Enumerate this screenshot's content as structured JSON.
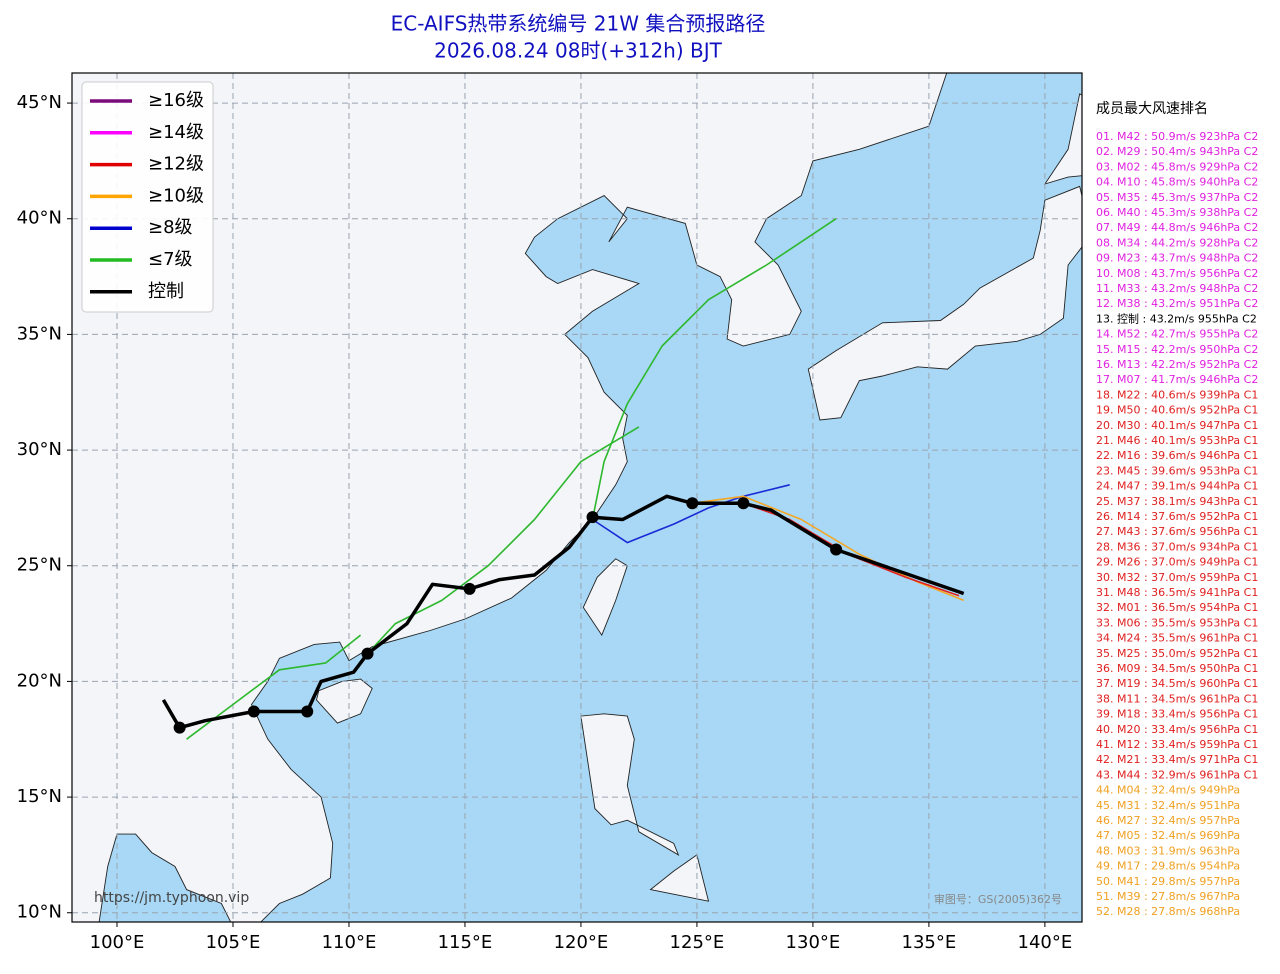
{
  "title": [
    "EC-AIFS热带系统编号 21W 集合预报路径",
    "2026.08.24 08时(+312h) BJT"
  ],
  "map": {
    "xlim": [
      98.06,
      141.6
    ],
    "ylim": [
      9.6,
      46.3
    ],
    "xticks": [
      {
        "value": 100,
        "label": "100°E"
      },
      {
        "value": 105,
        "label": "105°E"
      },
      {
        "value": 110,
        "label": "110°E"
      },
      {
        "value": 115,
        "label": "115°E"
      },
      {
        "value": 120,
        "label": "120°E"
      },
      {
        "value": 125,
        "label": "125°E"
      },
      {
        "value": 130,
        "label": "130°E"
      },
      {
        "value": 135,
        "label": "135°E"
      },
      {
        "value": 140,
        "label": "140°E"
      }
    ],
    "yticks": [
      {
        "value": 10,
        "label": "10°N"
      },
      {
        "value": 15,
        "label": "15°N"
      },
      {
        "value": 20,
        "label": "20°N"
      },
      {
        "value": 25,
        "label": "25°N"
      },
      {
        "value": 30,
        "label": "30°N"
      },
      {
        "value": 35,
        "label": "35°N"
      },
      {
        "value": 40,
        "label": "40°N"
      },
      {
        "value": 45,
        "label": "45°N"
      }
    ],
    "grid": true,
    "member_tracks": [
      {
        "color": "#2db82d",
        "lon": [
          120.5,
          121,
          122,
          123.5,
          125.5,
          128,
          131
        ],
        "lat": [
          27,
          29.5,
          32,
          34.5,
          36.5,
          38,
          40
        ]
      },
      {
        "color": "#2db82d",
        "lon": [
          110.8,
          112,
          114,
          116,
          118,
          120,
          122.5
        ],
        "lat": [
          21.2,
          22.5,
          23.5,
          25,
          27,
          29.5,
          31
        ]
      },
      {
        "color": "#2db82d",
        "lon": [
          103,
          105,
          107,
          109,
          110.5
        ],
        "lat": [
          17.5,
          19,
          20.5,
          20.8,
          22
        ]
      },
      {
        "color": "#1a2ad6",
        "lon": [
          120.5,
          122,
          124,
          125.5,
          127,
          129
        ],
        "lat": [
          27,
          26,
          26.8,
          27.5,
          28,
          28.5
        ]
      },
      {
        "color": "#f5a623",
        "lon": [
          124.8,
          127,
          129.5,
          132,
          134.5,
          136.5
        ],
        "lat": [
          27.7,
          28,
          27,
          25.5,
          24.3,
          23.5
        ]
      },
      {
        "color": "#e02020",
        "lon": [
          127,
          129,
          131.5,
          134,
          136.3
        ],
        "lat": [
          27.7,
          27,
          25.5,
          24.5,
          23.7
        ]
      }
    ],
    "control_track": {
      "color": "#000000",
      "lon": [
        102,
        102.7,
        103.8,
        105.9,
        108.2,
        108.8,
        110.2,
        110.8,
        112.5,
        113.6,
        115.2,
        116.5,
        118,
        119.5,
        120.5,
        121.8,
        123.7,
        124.8,
        127,
        128.2,
        131,
        136.5
      ],
      "lat": [
        19.2,
        18,
        18.3,
        18.7,
        18.7,
        20,
        20.4,
        21.2,
        22.5,
        24.2,
        24,
        24.4,
        24.6,
        25.8,
        27.1,
        27,
        28,
        27.7,
        27.7,
        27.4,
        25.7,
        23.8
      ]
    },
    "control_points": {
      "lon": [
        102.7,
        105.9,
        108.2,
        110.8,
        115.2,
        120.5,
        124.8,
        127,
        131
      ],
      "lat": [
        18,
        18.7,
        18.7,
        21.2,
        24,
        27.1,
        27.7,
        27.7,
        25.7
      ]
    }
  },
  "legend": [
    {
      "label": "≥16级",
      "color": "#7b0a7b"
    },
    {
      "label": "≥14级",
      "color": "#ff00ff"
    },
    {
      "label": "≥12级",
      "color": "#e00000"
    },
    {
      "label": "≥10级",
      "color": "#ffa500"
    },
    {
      "label": "≥8级",
      "color": "#0000cc"
    },
    {
      "label": "≤7级",
      "color": "#22bb22"
    },
    {
      "label": "控制",
      "color": "#000000"
    }
  ],
  "ranking": {
    "title": "成员最大风速排名",
    "items": [
      {
        "text": "01. M42 : 50.9m/s 923hPa C2",
        "color": "#e020e0"
      },
      {
        "text": "02. M29 : 50.4m/s 943hPa C2",
        "color": "#e020e0"
      },
      {
        "text": "03. M02 : 45.8m/s 929hPa C2",
        "color": "#e020e0"
      },
      {
        "text": "04. M10 : 45.8m/s 940hPa C2",
        "color": "#e020e0"
      },
      {
        "text": "05. M35 : 45.3m/s 937hPa C2",
        "color": "#e020e0"
      },
      {
        "text": "06. M40 : 45.3m/s 938hPa C2",
        "color": "#e020e0"
      },
      {
        "text": "07. M49 : 44.8m/s 946hPa C2",
        "color": "#e020e0"
      },
      {
        "text": "08. M34 : 44.2m/s 928hPa C2",
        "color": "#e020e0"
      },
      {
        "text": "09. M23 : 43.7m/s 948hPa C2",
        "color": "#e020e0"
      },
      {
        "text": "10. M08 : 43.7m/s 956hPa C2",
        "color": "#e020e0"
      },
      {
        "text": "11. M33 : 43.2m/s 948hPa C2",
        "color": "#e020e0"
      },
      {
        "text": "12. M38 : 43.2m/s 951hPa C2",
        "color": "#e020e0"
      },
      {
        "text": "13. 控制 : 43.2m/s 955hPa C2",
        "color": "#000000"
      },
      {
        "text": "14. M52 : 42.7m/s 955hPa C2",
        "color": "#e020e0"
      },
      {
        "text": "15. M15 : 42.2m/s 950hPa C2",
        "color": "#e020e0"
      },
      {
        "text": "16. M13 : 42.2m/s 952hPa C2",
        "color": "#e020e0"
      },
      {
        "text": "17. M07 : 41.7m/s 946hPa C2",
        "color": "#e020e0"
      },
      {
        "text": "18. M22 : 40.6m/s 939hPa C1",
        "color": "#e02020"
      },
      {
        "text": "19. M50 : 40.6m/s 952hPa C1",
        "color": "#e02020"
      },
      {
        "text": "20. M30 : 40.1m/s 947hPa C1",
        "color": "#e02020"
      },
      {
        "text": "21. M46 : 40.1m/s 953hPa C1",
        "color": "#e02020"
      },
      {
        "text": "22. M16 : 39.6m/s 946hPa C1",
        "color": "#e02020"
      },
      {
        "text": "23. M45 : 39.6m/s 953hPa C1",
        "color": "#e02020"
      },
      {
        "text": "24. M47 : 39.1m/s 944hPa C1",
        "color": "#e02020"
      },
      {
        "text": "25. M37 : 38.1m/s 943hPa C1",
        "color": "#e02020"
      },
      {
        "text": "26. M14 : 37.6m/s 952hPa C1",
        "color": "#e02020"
      },
      {
        "text": "27. M43 : 37.6m/s 956hPa C1",
        "color": "#e02020"
      },
      {
        "text": "28. M36 : 37.0m/s 934hPa C1",
        "color": "#e02020"
      },
      {
        "text": "29. M26 : 37.0m/s 949hPa C1",
        "color": "#e02020"
      },
      {
        "text": "30. M32 : 37.0m/s 959hPa C1",
        "color": "#e02020"
      },
      {
        "text": "31. M48 : 36.5m/s 941hPa C1",
        "color": "#e02020"
      },
      {
        "text": "32. M01 : 36.5m/s 954hPa C1",
        "color": "#e02020"
      },
      {
        "text": "33. M06 : 35.5m/s 953hPa C1",
        "color": "#e02020"
      },
      {
        "text": "34. M24 : 35.5m/s 961hPa C1",
        "color": "#e02020"
      },
      {
        "text": "35. M25 : 35.0m/s 952hPa C1",
        "color": "#e02020"
      },
      {
        "text": "36. M09 : 34.5m/s 950hPa C1",
        "color": "#e02020"
      },
      {
        "text": "37. M19 : 34.5m/s 960hPa C1",
        "color": "#e02020"
      },
      {
        "text": "38. M11 : 34.5m/s 961hPa C1",
        "color": "#e02020"
      },
      {
        "text": "39. M18 : 33.4m/s 956hPa C1",
        "color": "#e02020"
      },
      {
        "text": "40. M20 : 33.4m/s 956hPa C1",
        "color": "#e02020"
      },
      {
        "text": "41. M12 : 33.4m/s 959hPa C1",
        "color": "#e02020"
      },
      {
        "text": "42. M21 : 33.4m/s 971hPa C1",
        "color": "#e02020"
      },
      {
        "text": "43. M44 : 32.9m/s 961hPa C1",
        "color": "#e02020"
      },
      {
        "text": "44. M04 : 32.4m/s 949hPa",
        "color": "#f0a020"
      },
      {
        "text": "45. M31 : 32.4m/s 951hPa",
        "color": "#f0a020"
      },
      {
        "text": "46. M27 : 32.4m/s 957hPa",
        "color": "#f0a020"
      },
      {
        "text": "47. M05 : 32.4m/s 969hPa",
        "color": "#f0a020"
      },
      {
        "text": "48. M03 : 31.9m/s 963hPa",
        "color": "#f0a020"
      },
      {
        "text": "49. M17 : 29.8m/s 954hPa",
        "color": "#f0a020"
      },
      {
        "text": "50. M41 : 29.8m/s 957hPa",
        "color": "#f0a020"
      },
      {
        "text": "51. M39 : 27.8m/s 967hPa",
        "color": "#f0a020"
      },
      {
        "text": "52. M28 : 27.8m/s 968hPa",
        "color": "#f0a020"
      }
    ]
  },
  "credit": "https://jm.typhoon.vip",
  "watermark": "审图号：GS(2005)362号"
}
